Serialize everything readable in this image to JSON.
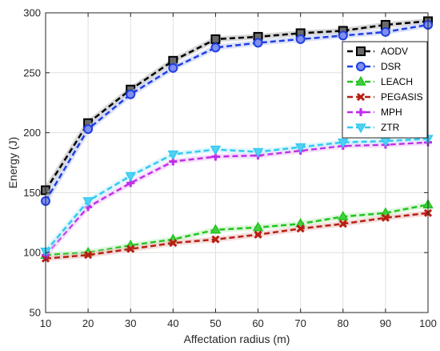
{
  "chart_data": {
    "type": "line",
    "title": "",
    "xlabel": "Affectation radius (m)",
    "ylabel": "Energy (J)",
    "xlim": [
      10,
      100
    ],
    "ylim": [
      50,
      300
    ],
    "xticks": [
      10,
      20,
      30,
      40,
      50,
      60,
      70,
      80,
      90,
      100
    ],
    "yticks": [
      50,
      100,
      150,
      200,
      250,
      300
    ],
    "grid": true,
    "legend_position": "top-right",
    "x": [
      10,
      20,
      30,
      40,
      50,
      60,
      70,
      80,
      90,
      100
    ],
    "series": [
      {
        "name": "AODV",
        "color": "#000000",
        "marker": "square",
        "values": [
          152,
          208,
          236,
          260,
          278,
          280,
          283,
          285,
          290,
          293
        ]
      },
      {
        "name": "DSR",
        "color": "#1f3fe0",
        "marker": "circle",
        "values": [
          143,
          203,
          232,
          254,
          271,
          275,
          278,
          281,
          284,
          290
        ]
      },
      {
        "name": "LEACH",
        "color": "#22c41e",
        "marker": "triangle-up",
        "values": [
          98,
          100,
          106,
          111,
          119,
          121,
          124,
          130,
          133,
          140
        ]
      },
      {
        "name": "PEGASIS",
        "color": "#b81f12",
        "marker": "x",
        "values": [
          95,
          98,
          103,
          108,
          111,
          115,
          120,
          124,
          129,
          133
        ]
      },
      {
        "name": "MPH",
        "color": "#c02ee8",
        "marker": "plus",
        "values": [
          98,
          138,
          158,
          176,
          180,
          181,
          185,
          189,
          190,
          192
        ]
      },
      {
        "name": "ZTR",
        "color": "#33c9f0",
        "marker": "triangle-down",
        "values": [
          101,
          143,
          164,
          182,
          186,
          184,
          188,
          192,
          193,
          195
        ]
      }
    ]
  }
}
